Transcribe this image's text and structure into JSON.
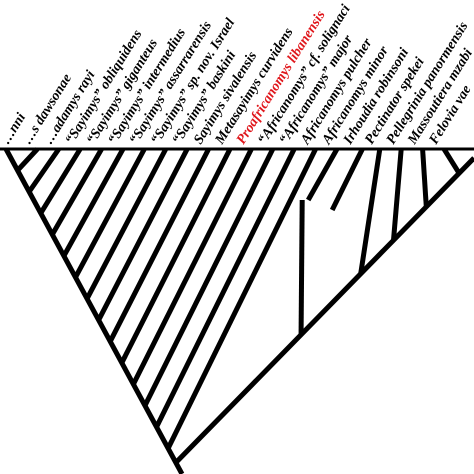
{
  "tree": {
    "taxa": [
      "…nni",
      "…s dawsonae",
      "…adamys rayi",
      "“Sayimys” obliquidens",
      "“Sayimys” giganteus",
      "“Sayimys” intermedius",
      "“Sayimys” assarrarensis",
      "“Sayimys” sp. nov. Israel",
      "“Sayimys” baskini",
      "Sayimys sivalensis",
      "Metasayimys curvidens",
      "Proafricanomys libanensis",
      "“Africanomys” cf. solignaci",
      "“Africanomys” major",
      "Africanomys pulcher",
      "Africanomys minor",
      "Irhoudia robinsoni",
      "Pectinator spekei",
      "Pellegrinia panormensis",
      "Massoutiera mzabi",
      "Felovia vae"
    ],
    "highlight_taxon": "Proafricanomys libanensis",
    "colors": {
      "branch": "#000000",
      "label": "#000000",
      "highlight": "#e0161b"
    }
  }
}
